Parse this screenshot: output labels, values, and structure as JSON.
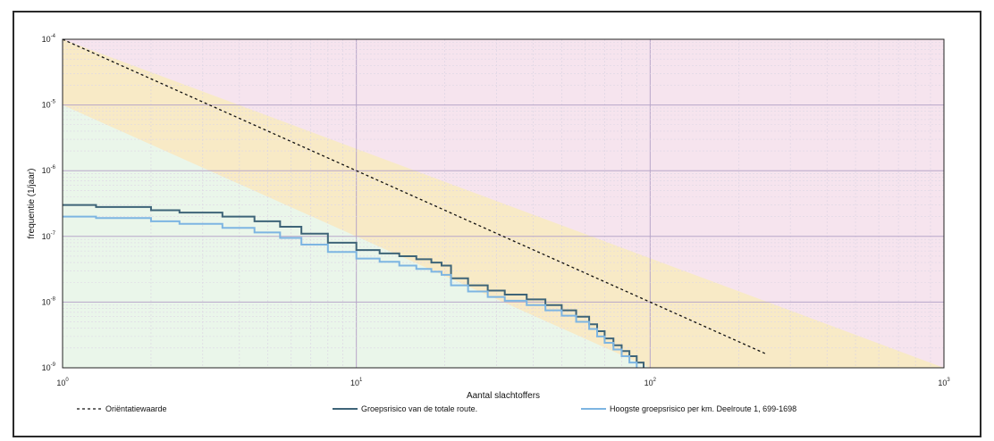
{
  "chart_data": {
    "type": "line",
    "x_scale": "log",
    "y_scale": "log",
    "xlim": [
      1,
      1000
    ],
    "ylim": [
      1e-09,
      0.0001
    ],
    "xlabel": "Aantal slachtoffers",
    "ylabel": "frequentie (1/jaar)",
    "x_ticks": [
      {
        "value": 1,
        "base": "10",
        "exp": "0"
      },
      {
        "value": 10,
        "base": "10",
        "exp": "1"
      },
      {
        "value": 100,
        "base": "10",
        "exp": "2"
      },
      {
        "value": 1000,
        "base": "10",
        "exp": "3"
      }
    ],
    "y_ticks": [
      {
        "value": 0.0001,
        "base": "10",
        "exp": "-4"
      },
      {
        "value": 1e-05,
        "base": "10",
        "exp": "-5"
      },
      {
        "value": 1e-06,
        "base": "10",
        "exp": "-6"
      },
      {
        "value": 1e-07,
        "base": "10",
        "exp": "-7"
      },
      {
        "value": 1e-08,
        "base": "10",
        "exp": "-8"
      },
      {
        "value": 1e-09,
        "base": "10",
        "exp": "-9"
      }
    ],
    "grid": true,
    "legend_position": "bottom",
    "background_zones": {
      "above_norm_color": "#f6e4ee",
      "band_color": "#f8eac6",
      "below_color": "#eaf6ea"
    },
    "series": [
      {
        "name": "Oriëntatiewaarde",
        "color": "#111111",
        "style": "dashed",
        "x": [
          1,
          10,
          100,
          250
        ],
        "y": [
          0.0001,
          1e-06,
          1e-08,
          1.6e-09
        ]
      },
      {
        "name": "Groepsrisico van de totale route.",
        "color": "#3e6478",
        "style": "step",
        "x": [
          1,
          1.3,
          2,
          2.5,
          3.5,
          4.5,
          5.5,
          6.5,
          8,
          10,
          12,
          14,
          16,
          18,
          19.5,
          21,
          24,
          28,
          32,
          38,
          44,
          50,
          56,
          62,
          66,
          70,
          75,
          80,
          85,
          90,
          95
        ],
        "y": [
          3e-07,
          2.8e-07,
          2.5e-07,
          2.3e-07,
          2e-07,
          1.7e-07,
          1.4e-07,
          1.1e-07,
          8e-08,
          6.2e-08,
          5.5e-08,
          5e-08,
          4.5e-08,
          4e-08,
          3.6e-08,
          2.3e-08,
          1.8e-08,
          1.5e-08,
          1.3e-08,
          1.1e-08,
          9e-09,
          7.5e-09,
          6e-09,
          4.6e-09,
          3.6e-09,
          2.8e-09,
          2.2e-09,
          1.8e-09,
          1.5e-09,
          1.2e-09,
          1e-09
        ]
      },
      {
        "name": "Hoogste groepsrisico per km. Deelroute 1, 699-1698",
        "color": "#7db5e2",
        "style": "step",
        "x": [
          1,
          1.3,
          2,
          2.5,
          3.5,
          4.5,
          5.5,
          6.5,
          8,
          10,
          12,
          14,
          16,
          18,
          19.5,
          21,
          24,
          28,
          32,
          38,
          44,
          50,
          56,
          62,
          66,
          70,
          75,
          80,
          85,
          90
        ],
        "y": [
          2e-07,
          1.9e-07,
          1.7e-07,
          1.55e-07,
          1.35e-07,
          1.15e-07,
          9.5e-08,
          7.5e-08,
          5.8e-08,
          4.6e-08,
          4.1e-08,
          3.6e-08,
          3.2e-08,
          2.9e-08,
          2.6e-08,
          1.8e-08,
          1.45e-08,
          1.2e-08,
          1.05e-08,
          9e-09,
          7.5e-09,
          6.2e-09,
          5e-09,
          3.9e-09,
          3e-09,
          2.4e-09,
          1.9e-09,
          1.5e-09,
          1.2e-09,
          1e-09
        ]
      }
    ]
  }
}
